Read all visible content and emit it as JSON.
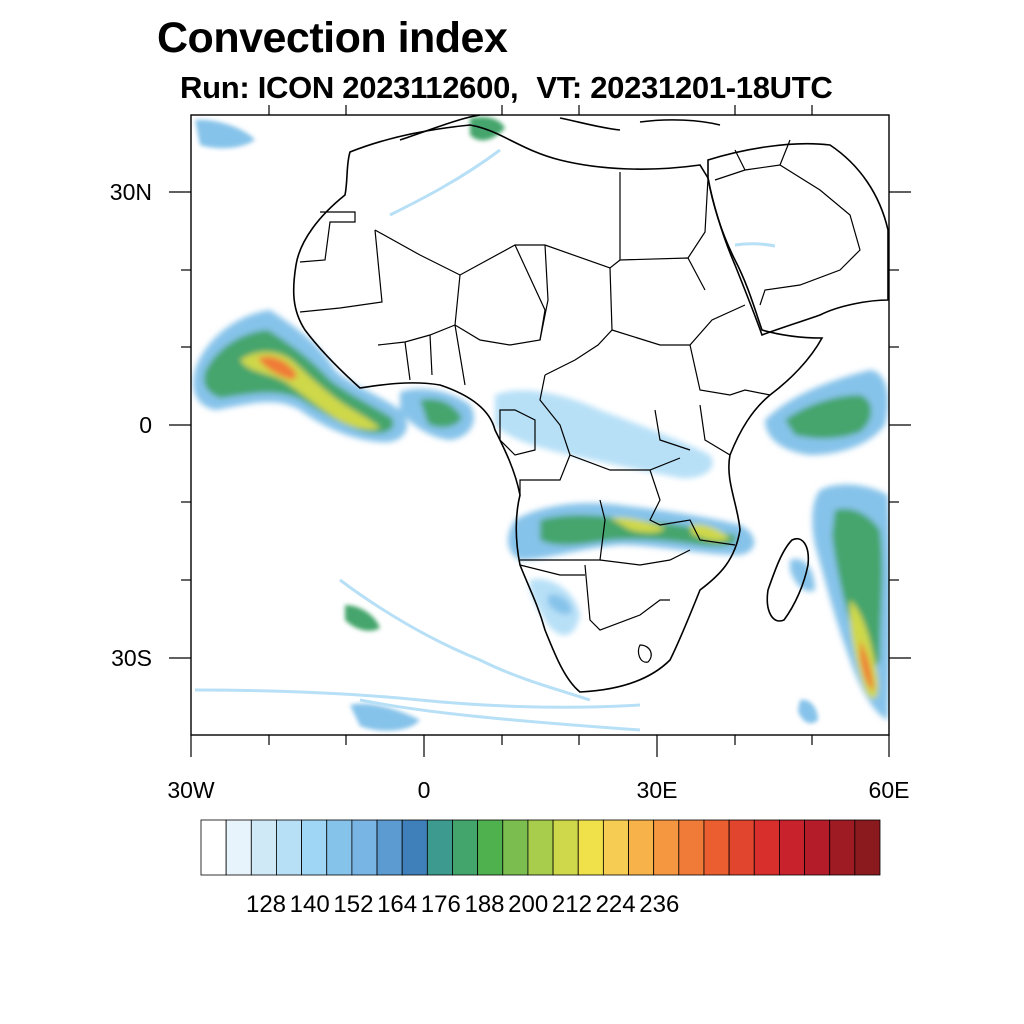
{
  "title": "Convection index",
  "subtitle": {
    "run": "Run: ICON 2023112600,",
    "valid": "VT: 20231201-18UTC"
  },
  "axes": {
    "lon_labels": [
      "30W",
      "0",
      "30E",
      "60E"
    ],
    "lat_labels": [
      "30N",
      "0",
      "30S"
    ]
  },
  "colorbar": {
    "labels": [
      "128",
      "140",
      "152",
      "164",
      "176",
      "188",
      "200",
      "212",
      "224",
      "236"
    ],
    "colors": [
      "#ffffff",
      "#e8f4fc",
      "#cfe9f7",
      "#b7e0f7",
      "#9fd6f6",
      "#86c3ea",
      "#78b4e4",
      "#5b9bd2",
      "#3f7fba",
      "#3c9a8f",
      "#44a56c",
      "#4fb14e",
      "#7cbd4f",
      "#a8cd4c",
      "#cfd84a",
      "#f0e04a",
      "#f6cc52",
      "#f8b24a",
      "#f59741",
      "#f07a37",
      "#ea5e30",
      "#e2452d",
      "#d82f2c",
      "#c8222c",
      "#b41c2a",
      "#9e1b24",
      "#8a1a1e"
    ]
  }
}
